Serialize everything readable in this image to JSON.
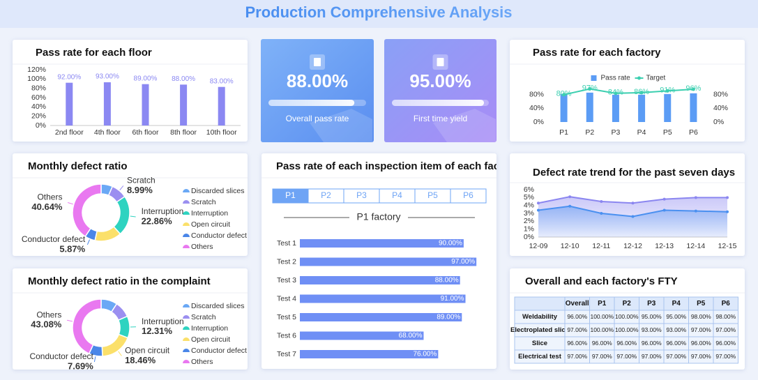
{
  "title": "Production Comprehensive Analysis",
  "kpis": [
    {
      "value": 88,
      "value_label": "88.00%",
      "label": "Overall pass rate",
      "range": [
        0,
        100
      ]
    },
    {
      "value": 95,
      "value_label": "95.00%",
      "label": "First time yield",
      "range": [
        0,
        100
      ]
    }
  ],
  "chart_data": [
    {
      "type": "bar",
      "title": "Pass rate for each floor",
      "categories": [
        "2nd floor",
        "4th floor",
        "6th floor",
        "8th floor",
        "10th floor"
      ],
      "values": [
        92,
        93,
        89,
        88,
        83
      ],
      "value_labels": [
        "92.00%",
        "93.00%",
        "89.00%",
        "88.00%",
        "83.00%"
      ],
      "color": "#8b88f2",
      "ylim": [
        0,
        120
      ],
      "yticks": [
        {
          "value": 0,
          "label": "0%"
        },
        {
          "value": 20,
          "label": "20%"
        },
        {
          "value": 40,
          "label": "40%"
        },
        {
          "value": 60,
          "label": "60%"
        },
        {
          "value": 80,
          "label": "80%"
        },
        {
          "value": 100,
          "label": "100%"
        },
        {
          "value": 120,
          "label": "120%"
        }
      ],
      "grid": false
    },
    {
      "type": "bar_line",
      "title": "Pass rate for each factory",
      "categories": [
        "P1",
        "P2",
        "P3",
        "P4",
        "P5",
        "P6"
      ],
      "series": [
        {
          "name": "Pass rate",
          "color": "#5b9cf5",
          "values": [
            82,
            86,
            80,
            80,
            82,
            84
          ]
        },
        {
          "name": "Target",
          "color": "#3ccfb0",
          "axis": "y2",
          "values": [
            80,
            97,
            84,
            86,
            91,
            96
          ],
          "value_labels": [
            "80%",
            "97%",
            "84%",
            "86%",
            "91%",
            "96%"
          ]
        }
      ],
      "ylim": [
        0,
        100
      ],
      "yticks": [
        {
          "value": 0,
          "label": "0%"
        },
        {
          "value": 40,
          "label": "40%"
        },
        {
          "value": 80,
          "label": "80%"
        }
      ],
      "y2lim": [
        0,
        100
      ],
      "y2ticks": [
        {
          "value": 0,
          "label": "0%"
        },
        {
          "value": 40,
          "label": "40%"
        },
        {
          "value": 80,
          "label": "80%"
        }
      ],
      "legend": "top"
    },
    {
      "type": "donut",
      "title": "Monthly defect ratio",
      "categories": [
        "Discarded slices",
        "Scratch",
        "Interruption",
        "Open circuit",
        "Conductor defect",
        "Others"
      ],
      "values": [
        6.5,
        8.99,
        22.86,
        15.14,
        5.87,
        40.64
      ],
      "value_labels": [
        null,
        "8.99%",
        "22.86%",
        null,
        "5.87%",
        "40.64%"
      ],
      "colors": [
        "#6aa8f5",
        "#9b8ff0",
        "#2ed3c0",
        "#fbe06a",
        "#4a86e8",
        "#e978f0"
      ]
    },
    {
      "type": "hbar",
      "title": "Pass rate of each inspection item of each factory",
      "tabs": [
        "P1",
        "P2",
        "P3",
        "P4",
        "P5",
        "P6"
      ],
      "active_tab": 0,
      "subtitle": "P1 factory",
      "categories": [
        "Test 1",
        "Test 2",
        "Test 3",
        "Test 4",
        "Test 5",
        "Test 6",
        "Test 7"
      ],
      "values": [
        90,
        97,
        88,
        91,
        89,
        68,
        76
      ],
      "value_labels": [
        "90.00%",
        "97.00%",
        "88.00%",
        "91.00%",
        "89.00%",
        "68.00%",
        "76.00%"
      ],
      "color": "#6f8ff5",
      "xlim": [
        0,
        100
      ]
    },
    {
      "type": "line",
      "title": "Defect rate trend for the past seven days",
      "x": [
        "12-09",
        "12-10",
        "12-11",
        "12-12",
        "12-13",
        "12-14",
        "12-15"
      ],
      "series": [
        {
          "color": "#8b86f0",
          "values": [
            4.3,
            5.1,
            4.5,
            4.3,
            4.8,
            5.0,
            5.0
          ]
        },
        {
          "color": "#4a90f0",
          "values": [
            3.4,
            3.9,
            3.0,
            2.6,
            3.4,
            3.3,
            3.2
          ]
        }
      ],
      "ylim": [
        0,
        6
      ],
      "yticks": [
        {
          "value": 0,
          "label": "0%"
        },
        {
          "value": 1,
          "label": "1%"
        },
        {
          "value": 2,
          "label": "2%"
        },
        {
          "value": 3,
          "label": "3%"
        },
        {
          "value": 4,
          "label": "4%"
        },
        {
          "value": 5,
          "label": "5%"
        },
        {
          "value": 6,
          "label": "6%"
        }
      ]
    },
    {
      "type": "donut",
      "title": "Monthly defect ratio in the complaint",
      "categories": [
        "Discarded slices",
        "Scratch",
        "Interruption",
        "Open circuit",
        "Conductor defect",
        "Others"
      ],
      "values": [
        9.23,
        9.23,
        12.31,
        18.46,
        7.69,
        43.08
      ],
      "value_labels": [
        null,
        null,
        "12.31%",
        "18.46%",
        "7.69%",
        "43.08%"
      ],
      "colors": [
        "#6aa8f5",
        "#9b8ff0",
        "#2ed3c0",
        "#fbe06a",
        "#4a86e8",
        "#e978f0"
      ]
    }
  ],
  "table": {
    "title": "Overall and each factory's FTY",
    "header": [
      null,
      "Overall",
      "P1",
      "P2",
      "P3",
      "P4",
      "P5",
      "P6"
    ],
    "rows": [
      [
        "Weldability",
        "96.00%",
        "100.00%",
        "100.00%",
        "95.00%",
        "95.00%",
        "98.00%",
        "98.00%"
      ],
      [
        "Electroplated slice",
        "97.00%",
        "100.00%",
        "100.00%",
        "93.00%",
        "93.00%",
        "97.00%",
        "97.00%"
      ],
      [
        "Slice",
        "96.00%",
        "96.00%",
        "96.00%",
        "96.00%",
        "96.00%",
        "96.00%",
        "96.00%"
      ],
      [
        "Electrical test",
        "97.00%",
        "97.00%",
        "97.00%",
        "97.00%",
        "97.00%",
        "97.00%",
        "97.00%"
      ]
    ]
  }
}
